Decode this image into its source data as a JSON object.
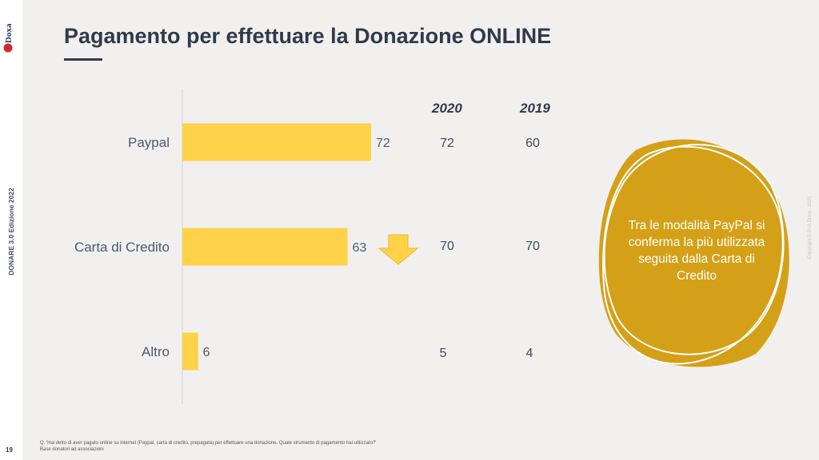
{
  "brand": {
    "logo_text": "BVA Doxa",
    "side_label": "DONARE 3.0 Edizione 2022",
    "page_number": "19",
    "copyright": "Copyright © BVA Doxa - 2021"
  },
  "title": "Pagamento per effettuare la Donazione ONLINE",
  "table": {
    "headers": [
      "2020",
      "2019"
    ],
    "rows": [
      {
        "label": "Paypal",
        "values": [
          "72",
          "60"
        ]
      },
      {
        "label": "Carta di Credito",
        "values": [
          "70",
          "70"
        ]
      },
      {
        "label": "Altro",
        "values": [
          "5",
          "4"
        ]
      }
    ]
  },
  "callout": "Tra le modalità PayPal si conferma la più utilizzata seguita dalla Carta di Credito",
  "footnote": {
    "line1": "Q. 'Hai detto di aver pagato online su internet (Paypal, carta di credito, prepagata) per effettuare una donazione. Quale strumento di pagamento hai utilizzato?'",
    "line2": "Base donatori ad associazioni"
  },
  "colors": {
    "bar": "#ffd24a",
    "arrow": "#ffd24a",
    "callout_fill": "#d4a017",
    "title": "#2f3a4a"
  },
  "icons": {
    "trend": "down-arrow-icon"
  },
  "chart_data": {
    "type": "bar",
    "orientation": "horizontal",
    "categories": [
      "Paypal",
      "Carta di Credito",
      "Altro"
    ],
    "values": [
      72,
      63,
      6
    ],
    "xlim": [
      0,
      100
    ],
    "grid": false,
    "data_labels": true
  }
}
